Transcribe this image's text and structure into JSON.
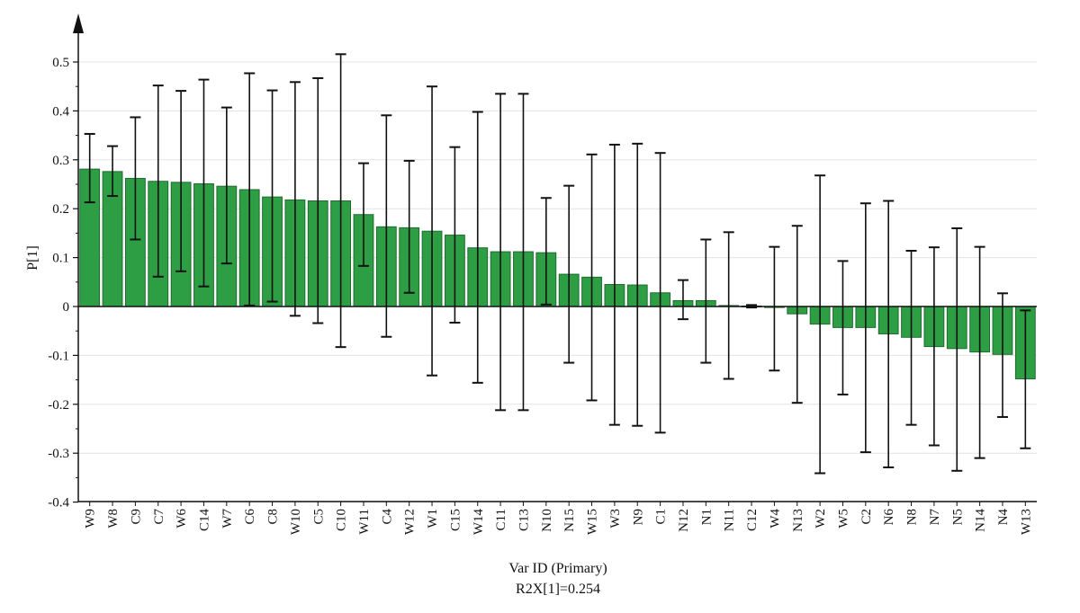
{
  "chart_data": {
    "type": "bar",
    "xlabel": "Var ID (Primary)",
    "ylabel": "P[1]",
    "subtitle": "R2X[1]=0.254",
    "ylim": [
      -0.4,
      0.55
    ],
    "yticks": [
      -0.4,
      -0.3,
      -0.2,
      -0.1,
      0,
      0.1,
      0.2,
      0.3,
      0.4,
      0.5
    ],
    "ytick_labels": [
      "-0.4",
      "-0.3",
      "-0.2",
      "-0.1",
      "0",
      "0.1",
      "0.2",
      "0.3",
      "0.4",
      "0.5"
    ],
    "grid": true,
    "bar_color": "#2e9e45",
    "bar_edge_color": "#1f6b2f",
    "errorbar_color": "#111111",
    "categories": [
      "W9",
      "W8",
      "C9",
      "C7",
      "W6",
      "C14",
      "W7",
      "C6",
      "C8",
      "W10",
      "C5",
      "C10",
      "W11",
      "C4",
      "W12",
      "W1",
      "C15",
      "W14",
      "C11",
      "C13",
      "N10",
      "N15",
      "W15",
      "W3",
      "N9",
      "C1",
      "N12",
      "N1",
      "N11",
      "C12",
      "W4",
      "N13",
      "W2",
      "W5",
      "C2",
      "N6",
      "N8",
      "N7",
      "N5",
      "N14",
      "N4",
      "W13"
    ],
    "values": [
      0.281,
      0.276,
      0.262,
      0.256,
      0.254,
      0.251,
      0.246,
      0.239,
      0.224,
      0.218,
      0.216,
      0.216,
      0.188,
      0.163,
      0.161,
      0.154,
      0.146,
      0.12,
      0.112,
      0.112,
      0.11,
      0.066,
      0.06,
      0.045,
      0.044,
      0.028,
      0.012,
      0.012,
      0.002,
      0.001,
      -0.002,
      -0.015,
      -0.036,
      -0.043,
      -0.043,
      -0.056,
      -0.063,
      -0.082,
      -0.086,
      -0.093,
      -0.098,
      -0.148
    ],
    "error_upper": [
      0.353,
      0.328,
      0.387,
      0.452,
      0.441,
      0.464,
      0.407,
      0.477,
      0.442,
      0.459,
      0.467,
      0.516,
      0.293,
      0.391,
      0.298,
      0.45,
      0.326,
      0.398,
      0.435,
      0.435,
      0.222,
      0.247,
      0.311,
      0.331,
      0.333,
      0.314,
      0.054,
      0.137,
      0.152,
      0.003,
      0.122,
      0.165,
      0.268,
      0.093,
      0.211,
      0.216,
      0.114,
      0.121,
      0.16,
      0.122,
      0.027,
      -0.008
    ],
    "error_lower": [
      0.213,
      0.226,
      0.137,
      0.061,
      0.072,
      0.041,
      0.088,
      0.002,
      0.01,
      -0.019,
      -0.034,
      -0.083,
      0.083,
      -0.062,
      0.028,
      -0.141,
      -0.033,
      -0.156,
      -0.212,
      -0.212,
      0.004,
      -0.115,
      -0.192,
      -0.242,
      -0.244,
      -0.258,
      -0.026,
      -0.115,
      -0.148,
      -0.002,
      -0.131,
      -0.197,
      -0.341,
      -0.18,
      -0.298,
      -0.329,
      -0.242,
      -0.284,
      -0.336,
      -0.31,
      -0.226,
      -0.29
    ]
  }
}
